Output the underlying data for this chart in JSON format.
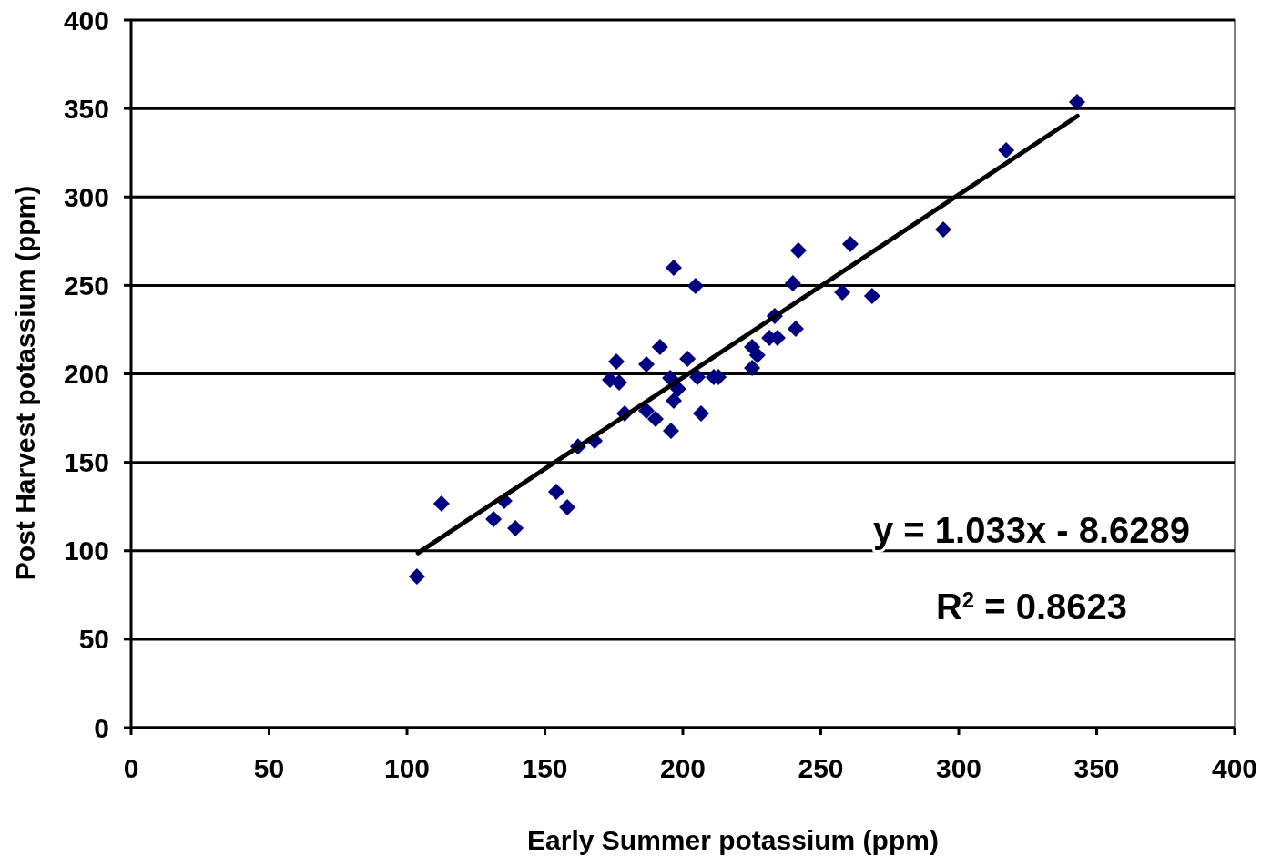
{
  "chart_data": {
    "type": "scatter",
    "xlabel": "Early Summer potassium (ppm)",
    "ylabel": "Post Harvest potassium (ppm)",
    "xlim": [
      0,
      400
    ],
    "xticks": [
      0,
      50,
      100,
      150,
      200,
      250,
      300,
      350,
      400
    ],
    "ylim": [
      0,
      400
    ],
    "yticks": [
      0,
      50,
      100,
      150,
      200,
      250,
      300,
      350,
      400
    ],
    "grid": "y",
    "annotations": [
      "y = 1.033x - 8.6289",
      "R$^{2}$ = 0.8623"
    ],
    "series": [
      {
        "color": "#000080",
        "marker": "diamond",
        "x": [
          103.6,
          112.5,
          131.4,
          135.3,
          139.3,
          154.1,
          158.1,
          162,
          168,
          173.6,
          175.9,
          176.9,
          178.9,
          186.8,
          186.8,
          190.1,
          191.7,
          195.7,
          195.4,
          196.7,
          198.3,
          196.7,
          201.7,
          204.6,
          205.3,
          206.6,
          211.2,
          212.9,
          225.1,
          225.1,
          227,
          231.4,
          233.3,
          234.3,
          239.9,
          240.9,
          241.9,
          257.8,
          260.7,
          268.6,
          294.4,
          317.2,
          342.9
        ],
        "values": [
          85.5,
          126.6,
          117.9,
          128.2,
          112.7,
          133.3,
          124.6,
          159,
          162.2,
          196.7,
          207,
          195.1,
          177.6,
          205.4,
          179.2,
          174.5,
          215.2,
          167.8,
          197.7,
          184.8,
          191.5,
          260,
          208.5,
          249.7,
          198.2,
          177.6,
          198.2,
          198.2,
          215.2,
          203.3,
          210.6,
          220.3,
          232.7,
          220.3,
          251.2,
          225.5,
          269.8,
          246.1,
          273.4,
          244,
          281.6,
          326.4,
          353.7
        ]
      },
      {
        "type": "line",
        "color": "#000000",
        "x": [
          104,
          343
        ],
        "values": [
          98.8,
          345.7
        ],
        "line_style": "solid"
      }
    ]
  }
}
